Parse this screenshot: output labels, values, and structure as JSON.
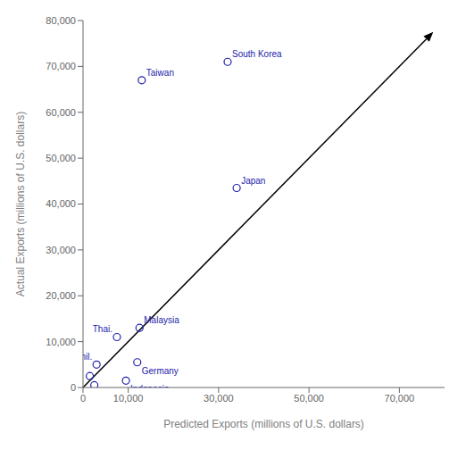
{
  "chart_data": {
    "type": "scatter",
    "xlabel": "Predicted Exports (millions of U.S. dollars)",
    "ylabel": "Actual Exports (millions of U.S. dollars)",
    "x": [
      32000,
      13000,
      34000,
      12500,
      7500,
      3000,
      12000,
      9500,
      1500,
      2500
    ],
    "y": [
      71000,
      67000,
      43500,
      13000,
      11000,
      5000,
      5500,
      1500,
      2500,
      500
    ],
    "point_labels": [
      "South Korea",
      "Taiwan",
      "Japan",
      "Malaysia",
      "Thai.",
      "Phil.",
      "Germany",
      "Indonesia",
      null,
      null
    ],
    "color": "#2222aa",
    "marker": "circle",
    "xlim": [
      0,
      80000
    ],
    "ylim": [
      0,
      80000
    ],
    "xticks": [
      0,
      {
        "value": 10000,
        "label": "10,000"
      },
      {
        "value": 30000,
        "label": "30,000"
      },
      {
        "value": 50000,
        "label": "50,000"
      },
      {
        "value": 70000,
        "label": "70,000"
      }
    ],
    "yticks": [
      0,
      {
        "value": 10000,
        "label": "10,000"
      },
      {
        "value": 20000,
        "label": "20,000"
      },
      {
        "value": 30000,
        "label": "30,000"
      },
      {
        "value": 40000,
        "label": "40,000"
      },
      {
        "value": 50000,
        "label": "50,000"
      },
      {
        "value": 60000,
        "label": "60,000"
      },
      {
        "value": 70000,
        "label": "70,000"
      },
      {
        "value": 80000,
        "label": "80,000"
      }
    ],
    "arrow": {
      "from": [
        0,
        0
      ],
      "to": [
        77500,
        77500
      ]
    },
    "grid": false
  }
}
